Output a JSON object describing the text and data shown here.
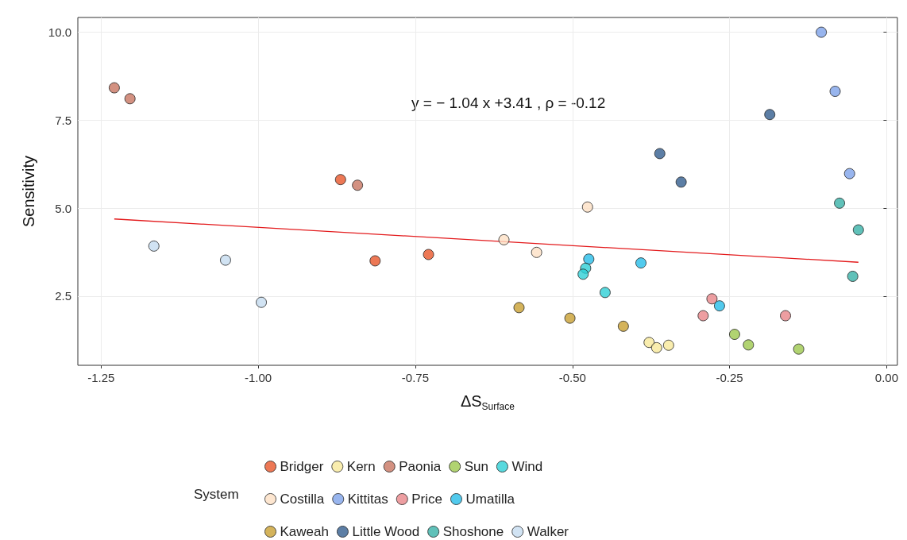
{
  "chart_data": {
    "type": "scatter",
    "xlabel": "ΔS$_{Surface}$",
    "ylabel": "Sensitivity",
    "legend_title": "System",
    "legend": "bottom",
    "grid": true,
    "marker": "circle",
    "annotations": [
      "y = − 1.04 x +3.41 , ρ = -0.12"
    ],
    "xlim": [
      -1.287,
      0.017
    ],
    "ylim": [
      0.53,
      10.42
    ],
    "xticks": [
      -1.25,
      {
        "value": -1,
        "label": "-1.00"
      },
      -0.75,
      {
        "value": -0.5,
        "label": "-0.50"
      },
      -0.25,
      {
        "value": 0,
        "label": "0.00"
      }
    ],
    "yticks": [
      2.5,
      {
        "value": 5,
        "label": "5.0"
      },
      7.5,
      {
        "value": 10,
        "label": "10.0"
      }
    ],
    "series": [
      {
        "name": "Bridger",
        "color": "#e8562a",
        "x": [
          -0.869,
          -0.814,
          -0.729
        ],
        "values": [
          5.81,
          3.5,
          3.68
        ]
      },
      {
        "name": "Costilla",
        "color": "#fce0c4",
        "x": [
          -0.609,
          -0.557,
          -0.476
        ],
        "values": [
          4.1,
          3.74,
          5.03
        ]
      },
      {
        "name": "Kaweah",
        "color": "#c9a032",
        "x": [
          -0.585,
          -0.504,
          -0.419
        ],
        "values": [
          2.17,
          1.87,
          1.64
        ]
      },
      {
        "name": "Kern",
        "color": "#f7e99a",
        "x": [
          -0.378,
          -0.366,
          -0.347
        ],
        "values": [
          1.18,
          1.03,
          1.1
        ]
      },
      {
        "name": "Kittitas",
        "color": "#7ea2ea",
        "x": [
          -0.104,
          -0.082,
          -0.059
        ],
        "values": [
          10.0,
          8.32,
          5.98
        ]
      },
      {
        "name": "Little Wood",
        "color": "#335e8f",
        "x": [
          -0.186,
          -0.361,
          -0.327
        ],
        "values": [
          7.66,
          6.55,
          5.74
        ]
      },
      {
        "name": "Paonia",
        "color": "#c87562",
        "x": [
          -1.229,
          -1.204,
          -0.842
        ],
        "values": [
          8.42,
          8.11,
          5.65
        ]
      },
      {
        "name": "Price",
        "color": "#e9868a",
        "x": [
          -0.278,
          -0.292,
          -0.161
        ],
        "values": [
          2.42,
          1.94,
          1.94
        ]
      },
      {
        "name": "Shoshone",
        "color": "#38b2a8",
        "x": [
          -0.075,
          -0.045,
          -0.054
        ],
        "values": [
          5.14,
          4.38,
          3.06
        ]
      },
      {
        "name": "Sun",
        "color": "#9dc84e",
        "x": [
          -0.242,
          -0.22,
          -0.14
        ],
        "values": [
          1.41,
          1.11,
          0.99
        ]
      },
      {
        "name": "Umatilla",
        "color": "#27bde8",
        "x": [
          -0.474,
          -0.391,
          -0.266
        ],
        "values": [
          3.55,
          3.44,
          2.22
        ]
      },
      {
        "name": "Walker",
        "color": "#c6dcf0",
        "x": [
          -1.166,
          -1.052,
          -0.995
        ],
        "values": [
          3.92,
          3.52,
          2.32
        ]
      },
      {
        "name": "Wind",
        "color": "#2ecfd6",
        "x": [
          -0.479,
          -0.483,
          -0.448
        ],
        "values": [
          3.29,
          3.12,
          2.6
        ]
      },
      {
        "type": "line",
        "marker": "none",
        "color": "#e31a1c",
        "x": [
          -1.229,
          -0.045
        ],
        "values": [
          4.69,
          3.46
        ]
      }
    ]
  }
}
